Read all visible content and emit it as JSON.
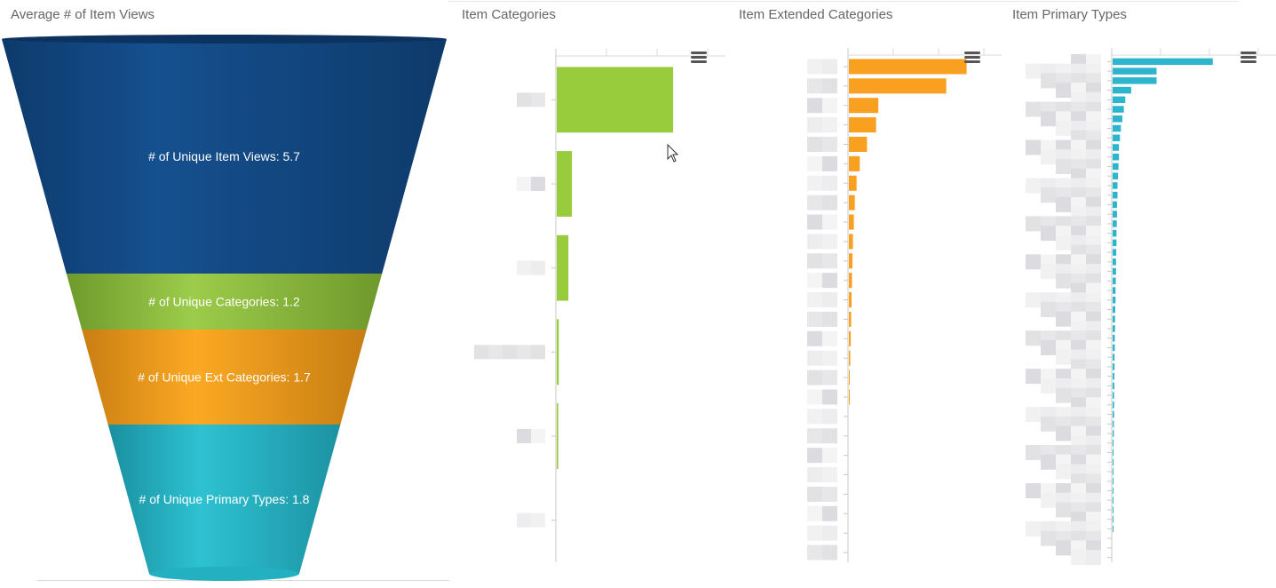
{
  "panels": {
    "funnel_title": "Average # of Item Views",
    "item_categories_title": "Item Categories",
    "ext_categories_title": "Item Extended Categories",
    "primary_types_title": "Item Primary Types"
  },
  "colors": {
    "views": "#124a86",
    "categories": "#8cc63f",
    "ext_categories": "#f7a11d",
    "primary_types": "#26b7c9",
    "bar_categories": "#99cc3d",
    "bar_ext": "#f9a021",
    "bar_primary": "#2cb5cc"
  },
  "chart_data": [
    {
      "type": "funnel",
      "title": "Average # of Item Views",
      "categories": [
        "# of Unique Item Views",
        "# of Unique Categories",
        "# of Unique Ext Categories",
        "# of Unique Primary Types"
      ],
      "values": [
        5.7,
        1.2,
        1.7,
        1.8
      ],
      "labels": [
        "# of Unique Item Views: 5.7",
        "# of Unique Categories: 1.2",
        "# of Unique Ext Categories: 1.7",
        "# of Unique Primary Types: 1.8"
      ]
    },
    {
      "type": "bar",
      "orientation": "horizontal",
      "title": "Item Categories",
      "values": [
        23,
        3,
        2.3,
        0.4,
        0.3,
        0
      ],
      "xlim": [
        0,
        30
      ],
      "grid": true
    },
    {
      "type": "bar",
      "orientation": "horizontal",
      "title": "Item Extended Categories",
      "values": [
        26,
        21.5,
        6.5,
        6,
        4,
        2.4,
        1.7,
        1.3,
        1.1,
        0.9,
        0.8,
        0.7,
        0.6,
        0.5,
        0.4,
        0.3,
        0.2,
        0.2,
        0,
        0,
        0,
        0,
        0,
        0,
        0,
        0,
        0
      ],
      "xlim": [
        0,
        30
      ],
      "grid": true
    },
    {
      "type": "bar",
      "orientation": "horizontal",
      "title": "Item Primary Types",
      "values": [
        20.5,
        9,
        9,
        3.8,
        2.6,
        2.3,
        2,
        1.7,
        1.5,
        1.3,
        1.3,
        1.2,
        1.1,
        1,
        1,
        0.9,
        0.9,
        0.85,
        0.8,
        0.8,
        0.75,
        0.7,
        0.7,
        0.65,
        0.6,
        0.6,
        0.55,
        0.5,
        0.5,
        0.45,
        0.45,
        0.4,
        0.4,
        0.35,
        0.35,
        0.3,
        0.3,
        0.3,
        0.25,
        0.25,
        0.2,
        0.2,
        0.2,
        0.15,
        0.15,
        0.1,
        0.1,
        0.1,
        0.05,
        0.05
      ],
      "xlim": [
        0,
        30
      ],
      "grid": true
    }
  ]
}
